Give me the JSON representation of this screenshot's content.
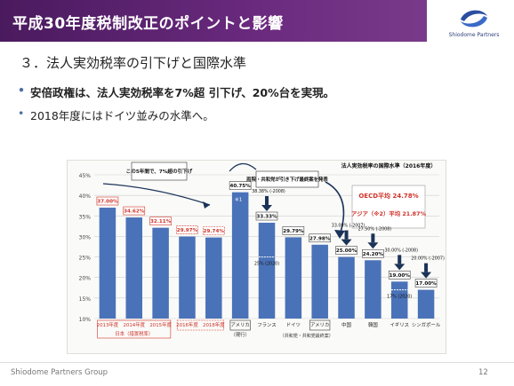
{
  "header": {
    "title": "平成30年度税制改正のポイントと影響"
  },
  "logo": {
    "text": "Shiodome Partners"
  },
  "section": {
    "subtitle": "３．法人実効税率の引下げと国際水準"
  },
  "bullets": [
    "安倍政権は、法人実効税率を7%超 引下げ、20%台を実現。",
    "2018年度にはドイツ並みの水準へ。"
  ],
  "footer": {
    "company": "Shiodome Partners Group",
    "page": "12"
  },
  "colors": {
    "header": "#5a2470",
    "bar": "#4a72b8",
    "accent": "#d0332a",
    "arrow": "#1c3358"
  },
  "chart_data": {
    "type": "bar",
    "ylim": [
      10,
      45
    ],
    "yticks": [
      "45%",
      "40%",
      "35%",
      "30%",
      "25%",
      "20%",
      "15%",
      "10%"
    ],
    "bars": [
      {
        "label": "2013年度",
        "value": 37.0,
        "text": "37.00%"
      },
      {
        "label": "2014年度",
        "value": 34.62,
        "text": "34.62%"
      },
      {
        "label": "2015年度",
        "value": 32.11,
        "text": "32.11%"
      },
      {
        "label": "2016年度",
        "value": 29.97,
        "text": "29.97%"
      },
      {
        "label": "2018年度",
        "value": 29.74,
        "text": "29.74%"
      },
      {
        "label": "アメリカ",
        "value": 40.75,
        "text": "40.75%"
      },
      {
        "label": "フランス",
        "value": 33.33,
        "text": "33.33%"
      },
      {
        "label": "ドイツ",
        "value": 29.79,
        "text": "29.79%"
      },
      {
        "label": "アメリカ",
        "value": 27.98,
        "text": "27.98%"
      },
      {
        "label": "中国",
        "value": 25.0,
        "text": "25.00%"
      },
      {
        "label": "韓国",
        "value": 24.2,
        "text": "24.20%"
      },
      {
        "label": "イギリス",
        "value": 19.0,
        "text": "19.00%"
      },
      {
        "label": "シンガポール",
        "value": 17.0,
        "text": "17.00%"
      }
    ],
    "annotations": {
      "japan_group": "日本（措置税率）",
      "usa_current": "（現行）",
      "usa_proposal": "（共和党・共和党最終案）",
      "footnote1": "※1",
      "five_years": "この5年間で、7%超の引下げ",
      "republican": "両院・共和党が引き下げ最終案を発表",
      "intl_title": "法人実効税率の国際水準（2016年度）",
      "oecd": "OECD平均 24.78%",
      "asia": "アジア（※2）平均 21.87%",
      "fr_prior": "38.38% (-2008)",
      "fr_future": "25% (2020)",
      "cn_prior": "33.00% (-2007)",
      "kr_prior": "27.50% (-2008)",
      "uk_prior": "30.00% (-2008)",
      "uk_future": "17% (2020)",
      "sg_prior": "20.00% (-2007)"
    }
  }
}
